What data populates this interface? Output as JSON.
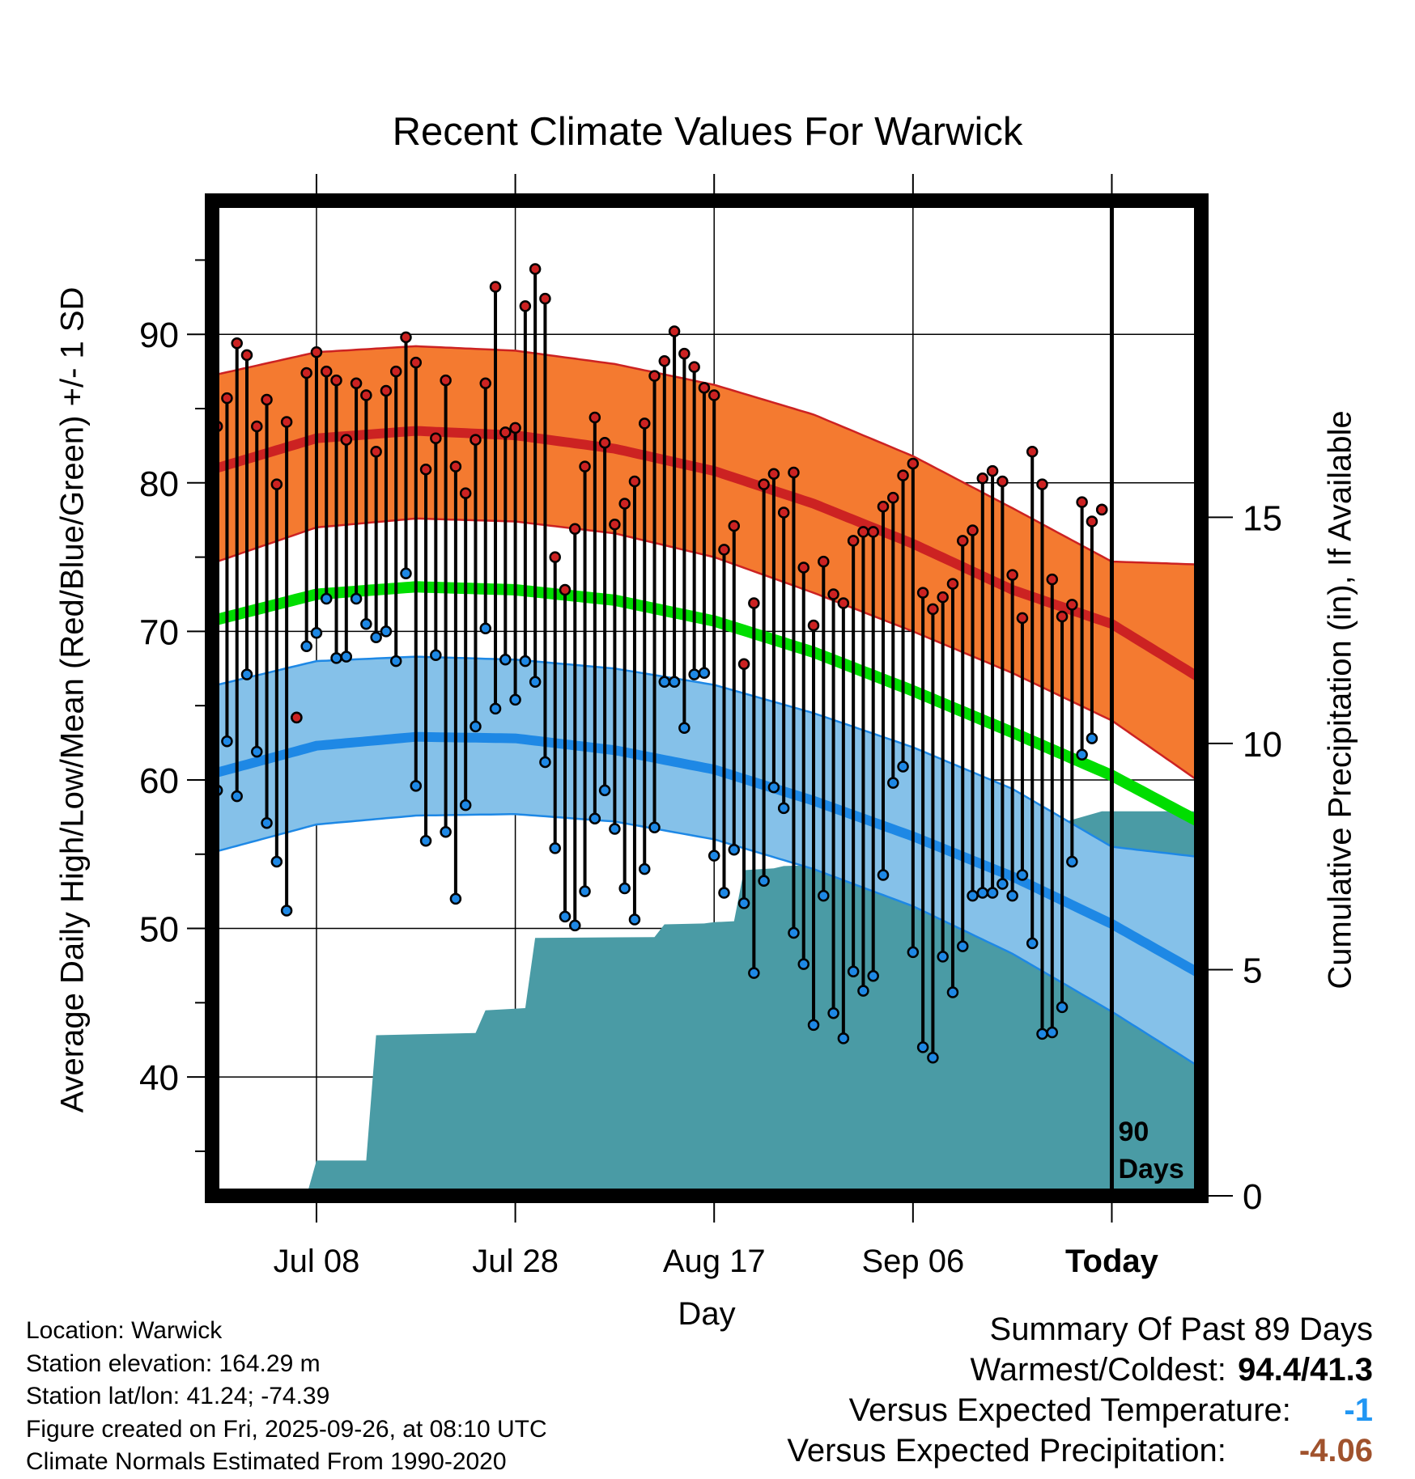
{
  "title": "Recent Climate Values For Warwick",
  "left_axis_label": "Average Daily High/Low/Mean (Red/Blue/Green) +/- 1 SD",
  "right_axis_label": "Cumulative Precipitation (in), If Available",
  "x_axis_label": "Day",
  "today_marker": {
    "line1": "90",
    "line2": "Days"
  },
  "metadata": {
    "location": "Location: Warwick",
    "elevation": "Station elevation: 164.29 m",
    "latlon": "Station lat/lon: 41.24; -74.39",
    "created": "Figure created on Fri, 2025-09-26, at 08:10 UTC",
    "normals": "Climate Normals Estimated From 1990-2020"
  },
  "summary": {
    "heading": "Summary Of Past 89 Days",
    "warmest_coldest_label": "Warmest/Coldest:",
    "warmest_coldest_value": "94.4/41.3",
    "vs_temp_label": "Versus Expected Temperature:",
    "vs_temp_value": "-1",
    "vs_precip_label": "Versus Expected Precipitation:",
    "vs_precip_value": "-4.06"
  },
  "colors": {
    "high": "#cc2222",
    "high_band": "#f47a30",
    "low": "#1e88e5",
    "low_band": "#85c1e9",
    "mean": "#00dd00",
    "precip": "#4a9ba5",
    "vs_temp": "#2196f3",
    "vs_precip": "#a0522d"
  },
  "chart_data": {
    "type": "line",
    "title": "Recent Climate Values For Warwick",
    "xlabel": "Day",
    "ylabel": "Average Daily High/Low/Mean (Red/Blue/Green) +/- 1 SD",
    "y2label": "Cumulative Precipitation (in), If Available",
    "x_range": [
      -0.5,
      99
    ],
    "ylim": [
      32,
      99
    ],
    "y2lim": [
      0,
      22
    ],
    "y_ticks": [
      40,
      50,
      60,
      70,
      80,
      90
    ],
    "y2_ticks": [
      0,
      5,
      10,
      15
    ],
    "x_ticks": [
      {
        "day": 10,
        "label": "Jul 08"
      },
      {
        "day": 30,
        "label": "Jul 28"
      },
      {
        "day": 50,
        "label": "Aug 17"
      },
      {
        "day": 70,
        "label": "Sep 06"
      },
      {
        "day": 90,
        "label": "Today"
      }
    ],
    "today_day": 90,
    "grid": true,
    "normals": {
      "days": [
        0,
        10,
        20,
        30,
        40,
        50,
        60,
        70,
        80,
        90,
        99
      ],
      "high_mean": [
        81.0,
        83.0,
        83.5,
        83.2,
        82.3,
        80.8,
        78.6,
        75.9,
        72.8,
        70.5,
        66.8
      ],
      "high_upper": [
        87.3,
        88.8,
        89.2,
        88.9,
        88.0,
        86.6,
        84.6,
        81.8,
        78.3,
        74.7,
        74.5
      ],
      "high_lower": [
        74.7,
        77.0,
        77.6,
        77.4,
        76.6,
        75.0,
        72.6,
        70.0,
        67.2,
        64.0,
        59.8
      ],
      "mean": [
        70.8,
        72.5,
        73.0,
        72.8,
        72.1,
        70.7,
        68.6,
        66.0,
        63.2,
        60.3,
        57.1
      ],
      "low_mean": [
        60.5,
        62.3,
        62.9,
        62.8,
        62.0,
        60.7,
        58.6,
        56.2,
        53.5,
        50.3,
        46.9
      ],
      "low_upper": [
        66.4,
        68.0,
        68.3,
        68.1,
        67.5,
        66.4,
        64.5,
        62.2,
        59.4,
        55.5,
        54.8
      ],
      "low_lower": [
        55.2,
        57.0,
        57.6,
        57.7,
        57.2,
        56.0,
        54.0,
        51.5,
        48.3,
        44.4,
        40.6
      ]
    },
    "observed": [
      {
        "day": 0,
        "high": 83.8,
        "low": 59.3
      },
      {
        "day": 1,
        "high": 85.7,
        "low": 62.6
      },
      {
        "day": 2,
        "high": 89.4,
        "low": 58.9
      },
      {
        "day": 3,
        "high": 88.6,
        "low": 67.1
      },
      {
        "day": 4,
        "high": 83.8,
        "low": 61.9
      },
      {
        "day": 5,
        "high": 85.6,
        "low": 57.1
      },
      {
        "day": 6,
        "high": 79.9,
        "low": 54.5
      },
      {
        "day": 7,
        "high": 84.1,
        "low": 51.2
      },
      {
        "day": 8,
        "high": 64.2,
        "low": 64.2
      },
      {
        "day": 9,
        "high": 87.4,
        "low": 69.0
      },
      {
        "day": 10,
        "high": 88.8,
        "low": 69.9
      },
      {
        "day": 11,
        "high": 87.5,
        "low": 72.2
      },
      {
        "day": 12,
        "high": 86.9,
        "low": 68.2
      },
      {
        "day": 13,
        "high": 82.9,
        "low": 68.3
      },
      {
        "day": 14,
        "high": 86.7,
        "low": 72.2
      },
      {
        "day": 15,
        "high": 85.9,
        "low": 70.5
      },
      {
        "day": 16,
        "high": 82.1,
        "low": 69.6
      },
      {
        "day": 17,
        "high": 86.2,
        "low": 70.0
      },
      {
        "day": 18,
        "high": 87.5,
        "low": 68.0
      },
      {
        "day": 19,
        "high": 89.8,
        "low": 73.9
      },
      {
        "day": 20,
        "high": 88.1,
        "low": 59.6
      },
      {
        "day": 21,
        "high": 80.9,
        "low": 55.9
      },
      {
        "day": 22,
        "high": 83.0,
        "low": 68.4
      },
      {
        "day": 23,
        "high": 86.9,
        "low": 56.5
      },
      {
        "day": 24,
        "high": 81.1,
        "low": 52.0
      },
      {
        "day": 25,
        "high": 79.3,
        "low": 58.3
      },
      {
        "day": 26,
        "high": 82.9,
        "low": 63.6
      },
      {
        "day": 27,
        "high": 86.7,
        "low": 70.2
      },
      {
        "day": 28,
        "high": 93.2,
        "low": 64.8
      },
      {
        "day": 29,
        "high": 83.4,
        "low": 68.1
      },
      {
        "day": 30,
        "high": 83.7,
        "low": 65.4
      },
      {
        "day": 31,
        "high": 91.9,
        "low": 68.0
      },
      {
        "day": 32,
        "high": 94.4,
        "low": 66.6
      },
      {
        "day": 33,
        "high": 92.4,
        "low": 61.2
      },
      {
        "day": 34,
        "high": 75.0,
        "low": 55.4
      },
      {
        "day": 35,
        "high": 72.8,
        "low": 50.8
      },
      {
        "day": 36,
        "high": 76.9,
        "low": 50.2
      },
      {
        "day": 37,
        "high": 81.1,
        "low": 52.5
      },
      {
        "day": 38,
        "high": 84.4,
        "low": 57.4
      },
      {
        "day": 39,
        "high": 82.7,
        "low": 59.3
      },
      {
        "day": 40,
        "high": 77.2,
        "low": 56.7
      },
      {
        "day": 41,
        "high": 78.6,
        "low": 52.7
      },
      {
        "day": 42,
        "high": 80.1,
        "low": 50.6
      },
      {
        "day": 43,
        "high": 84.0,
        "low": 54.0
      },
      {
        "day": 44,
        "high": 87.2,
        "low": 56.8
      },
      {
        "day": 45,
        "high": 88.2,
        "low": 66.6
      },
      {
        "day": 46,
        "high": 90.2,
        "low": 66.6
      },
      {
        "day": 47,
        "high": 88.7,
        "low": 63.5
      },
      {
        "day": 48,
        "high": 87.8,
        "low": 67.1
      },
      {
        "day": 49,
        "high": 86.4,
        "low": 67.2
      },
      {
        "day": 50,
        "high": 85.9,
        "low": 54.9
      },
      {
        "day": 51,
        "high": 75.5,
        "low": 52.4
      },
      {
        "day": 52,
        "high": 77.1,
        "low": 55.3
      },
      {
        "day": 53,
        "high": 67.8,
        "low": 51.7
      },
      {
        "day": 54,
        "high": 71.9,
        "low": 47.0
      },
      {
        "day": 55,
        "high": 79.9,
        "low": 53.2
      },
      {
        "day": 56,
        "high": 80.6,
        "low": 59.5
      },
      {
        "day": 57,
        "high": 78.0,
        "low": 58.1
      },
      {
        "day": 58,
        "high": 80.7,
        "low": 49.7
      },
      {
        "day": 59,
        "high": 74.3,
        "low": 47.6
      },
      {
        "day": 60,
        "high": 70.4,
        "low": 43.5
      },
      {
        "day": 61,
        "high": 74.7,
        "low": 52.2
      },
      {
        "day": 62,
        "high": 72.5,
        "low": 44.3
      },
      {
        "day": 63,
        "high": 71.9,
        "low": 42.6
      },
      {
        "day": 64,
        "high": 76.1,
        "low": 47.1
      },
      {
        "day": 65,
        "high": 76.7,
        "low": 45.8
      },
      {
        "day": 66,
        "high": 76.7,
        "low": 46.8
      },
      {
        "day": 67,
        "high": 78.4,
        "low": 53.6
      },
      {
        "day": 68,
        "high": 79.0,
        "low": 59.8
      },
      {
        "day": 69,
        "high": 80.5,
        "low": 60.9
      },
      {
        "day": 70,
        "high": 81.3,
        "low": 48.4
      },
      {
        "day": 71,
        "high": 72.6,
        "low": 42.0
      },
      {
        "day": 72,
        "high": 71.5,
        "low": 41.3
      },
      {
        "day": 73,
        "high": 72.3,
        "low": 48.1
      },
      {
        "day": 74,
        "high": 73.2,
        "low": 45.7
      },
      {
        "day": 75,
        "high": 76.1,
        "low": 48.8
      },
      {
        "day": 76,
        "high": 76.8,
        "low": 52.2
      },
      {
        "day": 77,
        "high": 80.3,
        "low": 52.4
      },
      {
        "day": 78,
        "high": 80.8,
        "low": 52.4
      },
      {
        "day": 79,
        "high": 80.1,
        "low": 53.0
      },
      {
        "day": 80,
        "high": 73.8,
        "low": 52.2
      },
      {
        "day": 81,
        "high": 70.9,
        "low": 53.6
      },
      {
        "day": 82,
        "high": 82.1,
        "low": 49.0
      },
      {
        "day": 83,
        "high": 79.9,
        "low": 42.9
      },
      {
        "day": 84,
        "high": 73.5,
        "low": 43.0
      },
      {
        "day": 85,
        "high": 71.0,
        "low": 44.7
      },
      {
        "day": 86,
        "high": 71.8,
        "low": 54.5
      },
      {
        "day": 87,
        "high": 78.7,
        "low": 61.7
      },
      {
        "day": 88,
        "high": 77.4,
        "low": 62.8
      },
      {
        "day": 89,
        "high": 78.2,
        "low": 78.2
      }
    ],
    "precip_cumulative": {
      "days": [
        9,
        10,
        15,
        16,
        26,
        27,
        31,
        32,
        44,
        45,
        49,
        50,
        52,
        53,
        56,
        57,
        67,
        68,
        84,
        85,
        89,
        99
      ],
      "values": [
        0.0,
        0.78,
        0.78,
        3.55,
        3.6,
        4.1,
        4.15,
        5.7,
        5.72,
        6.0,
        6.02,
        6.05,
        6.07,
        7.2,
        7.24,
        7.29,
        7.35,
        8.12,
        8.15,
        8.25,
        8.5,
        8.5
      ]
    }
  }
}
